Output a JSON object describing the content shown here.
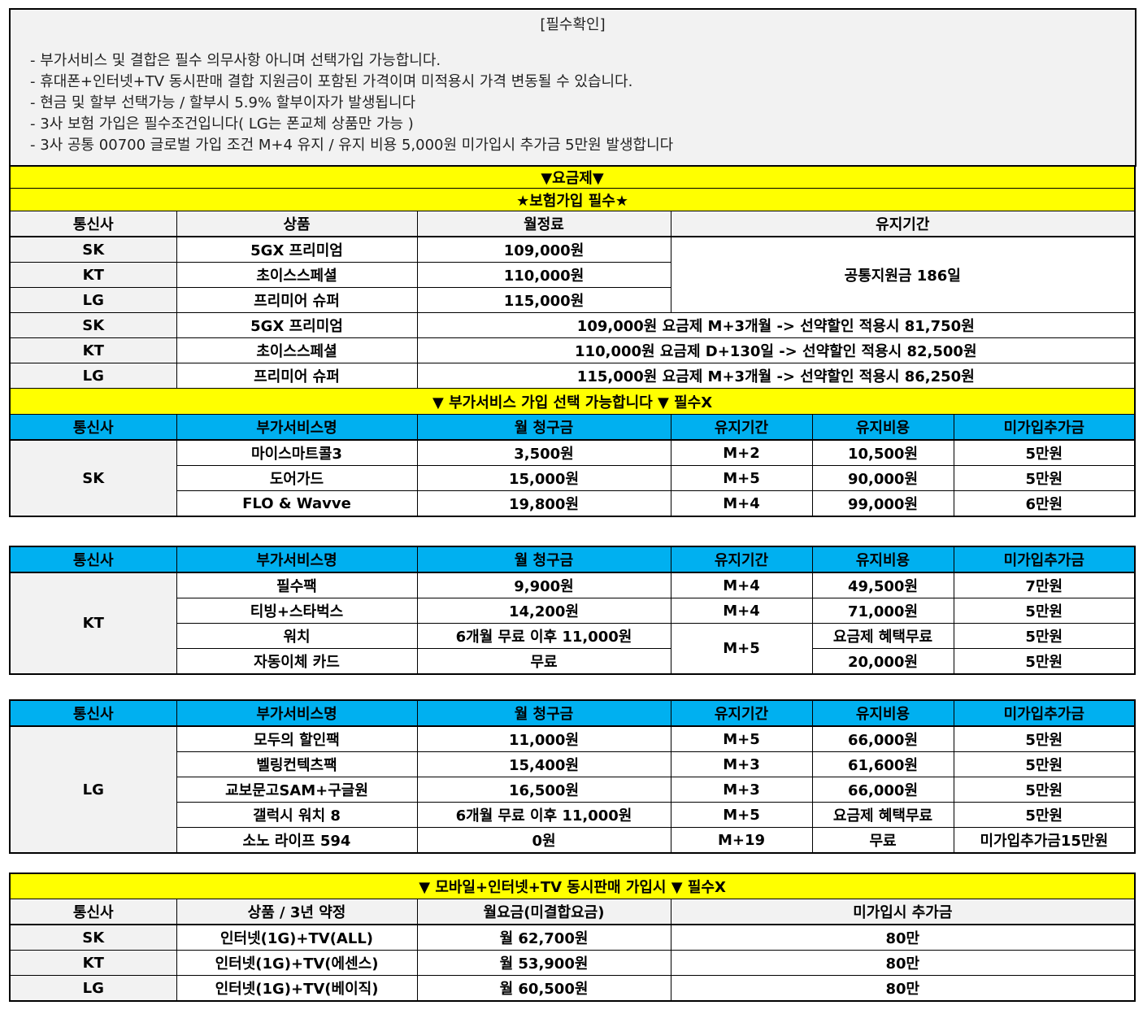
{
  "notes": {
    "title": "[필수확인]",
    "items": [
      "- 부가서비스 및 결합은 필수 의무사항 아니며 선택가입 가능합니다.",
      "- 휴대폰+인터넷+TV 동시판매 결합 지원금이 포함된 가격이며 미적용시 가격 변동될 수 있습니다.",
      "- 현금 및 할부 선택가능 / 할부시 5.9% 할부이자가 발생됩니다",
      "- 3사 보험 가입은 필수조건입니다( LG는 폰교체 상품만 가능 )",
      "- 3사 공통 00700 글로벌 가입 조건 M+4 유지 / 유지 비용 5,000원 미가입시 추가금 5만원 발생합니다"
    ]
  },
  "plan": {
    "banner1": "▼요금제▼",
    "banner2": "★보험가입 필수★",
    "headers": [
      "통신사",
      "상품",
      "월정료",
      "유지기간"
    ],
    "rows": [
      [
        "SK",
        "5GX 프리미엄",
        "109,000원"
      ],
      [
        "KT",
        "초이스스페셜",
        "110,000원"
      ],
      [
        "LG",
        "프리미어 슈퍼",
        "115,000원"
      ]
    ],
    "period": "공통지원금 186일",
    "discount_rows": [
      [
        "SK",
        "5GX 프리미엄",
        "109,000원 요금제 M+3개월 -> 선약할인 적용시 81,750원"
      ],
      [
        "KT",
        "초이스스페셜",
        "110,000원 요금제 D+130일 -> 선약할인 적용시 82,500원"
      ],
      [
        "LG",
        "프리미어 슈퍼",
        "115,000원 요금제 M+3개월 -> 선약할인 적용시 86,250원"
      ]
    ]
  },
  "addon": {
    "banner": "▼ 부가서비스 가입 선택 가능합니다 ▼ 필수X",
    "headers": [
      "통신사",
      "부가서비스명",
      "월 청구금",
      "유지기간",
      "유지비용",
      "미가입추가금"
    ],
    "sk": {
      "carrier": "SK",
      "rows": [
        [
          "마이스마트콜3",
          "3,500원",
          "M+2",
          "10,500원",
          "5만원"
        ],
        [
          "도어가드",
          "15,000원",
          "M+5",
          "90,000원",
          "5만원"
        ],
        [
          "FLO & Wavve",
          "19,800원",
          "M+4",
          "99,000원",
          "6만원"
        ]
      ]
    },
    "kt": {
      "carrier": "KT",
      "rows": [
        [
          "필수팩",
          "9,900원",
          "M+4",
          "49,500원",
          "7만원"
        ],
        [
          "티빙+스타벅스",
          "14,200원",
          "M+4",
          "71,000원",
          "5만원"
        ],
        [
          "워치",
          "6개월 무료 이후 11,000원",
          "M+5",
          "요금제 혜택무료",
          "5만원"
        ],
        [
          "자동이체 카드",
          "무료",
          "",
          "20,000원",
          "5만원"
        ]
      ]
    },
    "lg": {
      "carrier": "LG",
      "rows": [
        [
          "모두의 할인팩",
          "11,000원",
          "M+5",
          "66,000원",
          "5만원"
        ],
        [
          "벨링컨텍츠팩",
          "15,400원",
          "M+3",
          "61,600원",
          "5만원"
        ],
        [
          "교보문고SAM+구글원",
          "16,500원",
          "M+3",
          "66,000원",
          "5만원"
        ],
        [
          "갤럭시 워치 8",
          "6개월 무료 이후 11,000원",
          "M+5",
          "요금제 혜택무료",
          "5만원"
        ],
        [
          "소노 라이프 594",
          "0원",
          "M+19",
          "무료",
          "미가입추가금15만원"
        ]
      ]
    }
  },
  "bundle": {
    "banner": "▼ 모바일+인터넷+TV 동시판매 가입시 ▼ 필수X",
    "headers": [
      "통신사",
      "상품 / 3년 약정",
      "월요금(미결합요금)",
      "미가입시 추가금"
    ],
    "rows": [
      [
        "SK",
        "인터넷(1G)+TV(ALL)",
        "월 62,700원",
        "80만"
      ],
      [
        "KT",
        "인터넷(1G)+TV(에센스)",
        "월 53,900원",
        "80만"
      ],
      [
        "LG",
        "인터넷(1G)+TV(베이직)",
        "월 60,500원",
        "80만"
      ]
    ]
  },
  "colors": {
    "banner": "#ffff00",
    "header_blue": "#00b0f0",
    "gray": "#f2f2f2"
  }
}
